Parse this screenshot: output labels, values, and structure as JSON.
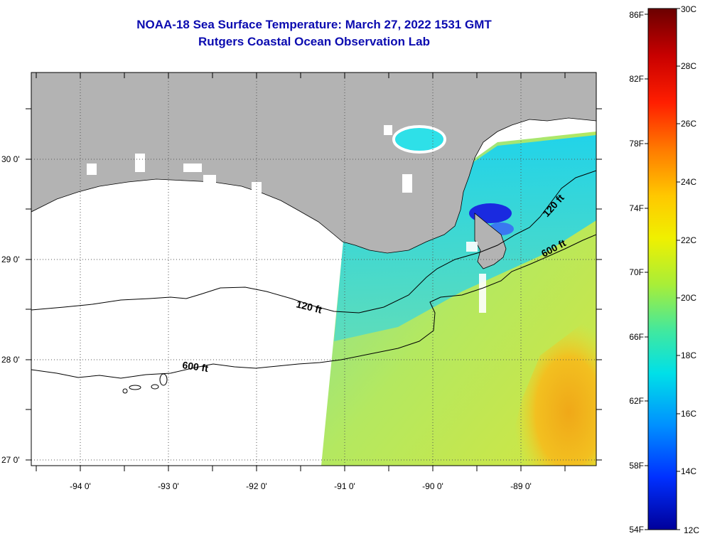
{
  "header": {
    "title": "NOAA-18 Sea Surface Temperature:  March 27, 2022 1531 GMT",
    "subtitle": "Rutgers Coastal Ocean Observation Lab"
  },
  "map": {
    "longitude_labels": [
      "-94 0'",
      "-93 0'",
      "-92 0'",
      "-91 0'",
      "-90 0'",
      "-89 0'"
    ],
    "latitude_labels": [
      "30 0'",
      "29 0'",
      "28 0'",
      "27 0'"
    ],
    "contour_labels": [
      "120 ft",
      "120 ft",
      "600 ft",
      "600 ft"
    ],
    "land_color": "#b3b3b3",
    "no_data_color": "#ffffff"
  },
  "colorbar": {
    "fahrenheit_labels": [
      "86F",
      "82F",
      "78F",
      "74F",
      "70F",
      "66F",
      "62F",
      "58F",
      "54F"
    ],
    "celsius_labels": [
      "30C",
      "28C",
      "26C",
      "24C",
      "22C",
      "20C",
      "18C",
      "16C",
      "14C",
      "12C"
    ],
    "colors": [
      "#6b0000",
      "#c80000",
      "#ff1e00",
      "#ff7a00",
      "#ffc800",
      "#f0f000",
      "#a8ee38",
      "#40e8a0",
      "#00e0e8",
      "#0090ff",
      "#0030ff",
      "#00009a"
    ]
  }
}
